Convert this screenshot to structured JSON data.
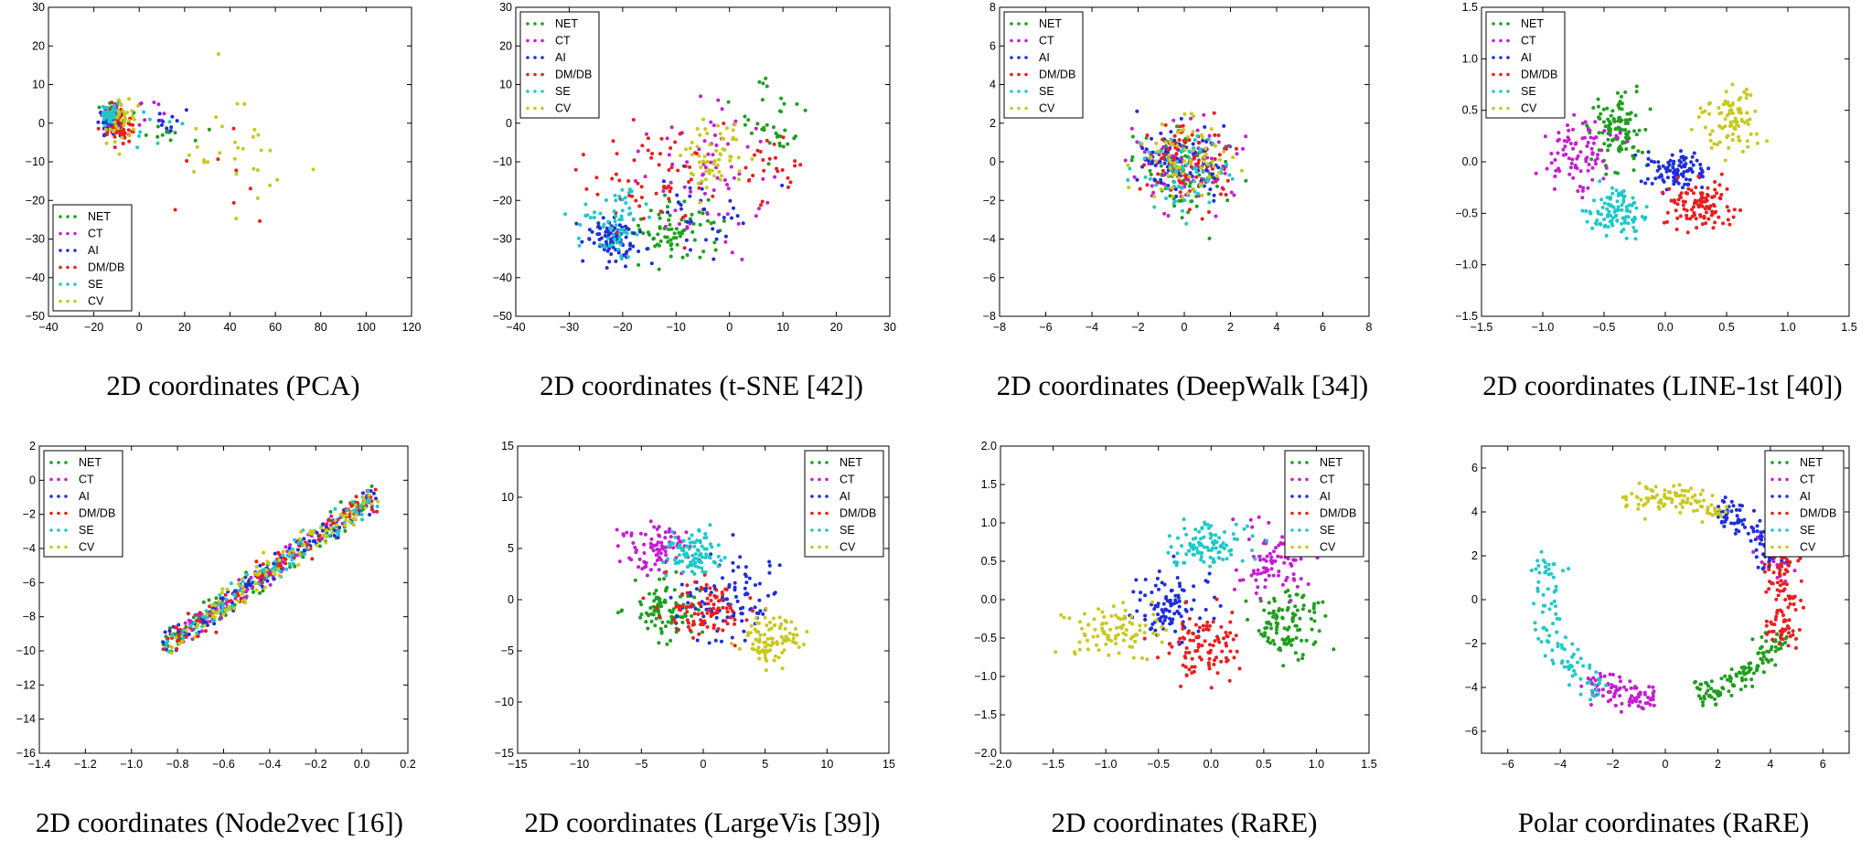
{
  "legend": {
    "entries": [
      "NET",
      "CT",
      "AI",
      "DM/DB",
      "SE",
      "CV"
    ],
    "colors": [
      "#1f9e1f",
      "#c41fd1",
      "#1f2fd8",
      "#e81f1f",
      "#1fc8c8",
      "#c8c81f"
    ]
  },
  "chart_data": [
    {
      "type": "scatter",
      "caption": "2D coordinates (PCA)",
      "xlim": [
        -40,
        120
      ],
      "ylim": [
        -50,
        30
      ],
      "xticks": [
        "−40",
        "−20",
        "0",
        "20",
        "40",
        "60",
        "80",
        "100",
        "120"
      ],
      "yticks": [
        "−50",
        "−40",
        "−30",
        "−20",
        "−10",
        "0",
        "10",
        "20",
        "30"
      ],
      "legend_position": "lower-left",
      "series": [
        {
          "name": "NET",
          "clusters": [
            {
              "cx": -12,
              "cy": 2,
              "sx": 4,
              "sy": 2,
              "n": 70
            },
            {
              "cx": 15,
              "cy": -2,
              "sx": 15,
              "sy": 5,
              "n": 12
            }
          ]
        },
        {
          "name": "CT",
          "clusters": [
            {
              "cx": -13,
              "cy": 2,
              "sx": 4,
              "sy": 2,
              "n": 55
            },
            {
              "cx": 5,
              "cy": 3,
              "sx": 8,
              "sy": 4,
              "n": 8
            }
          ]
        },
        {
          "name": "AI",
          "clusters": [
            {
              "cx": -12,
              "cy": 1,
              "sx": 4,
              "sy": 3,
              "n": 60
            },
            {
              "cx": 12,
              "cy": 0,
              "sx": 12,
              "sy": 5,
              "n": 10
            }
          ]
        },
        {
          "name": "DM/DB",
          "clusters": [
            {
              "cx": -9,
              "cy": -1,
              "sx": 5,
              "sy": 4,
              "n": 55
            },
            {
              "cx": 35,
              "cy": -15,
              "sx": 25,
              "sy": 12,
              "n": 8
            }
          ]
        },
        {
          "name": "SE",
          "clusters": [
            {
              "cx": -13,
              "cy": 2,
              "sx": 3,
              "sy": 2,
              "n": 50
            },
            {
              "cx": 5,
              "cy": -3,
              "sx": 10,
              "sy": 6,
              "n": 8
            }
          ]
        },
        {
          "name": "CV",
          "clusters": [
            {
              "cx": -8,
              "cy": 0,
              "sx": 6,
              "sy": 5,
              "n": 35
            },
            {
              "cx": 45,
              "cy": -8,
              "sx": 28,
              "sy": 14,
              "n": 30
            }
          ]
        }
      ]
    },
    {
      "type": "scatter",
      "caption": "2D coordinates (t-SNE [42])",
      "xlim": [
        -40,
        30
      ],
      "ylim": [
        -50,
        30
      ],
      "xticks": [
        "−40",
        "−30",
        "−20",
        "−10",
        "0",
        "10",
        "20",
        "30"
      ],
      "yticks": [
        "−50",
        "−40",
        "−30",
        "−20",
        "−10",
        "0",
        "10",
        "20",
        "30"
      ],
      "legend_position": "top-left",
      "series": [
        {
          "name": "NET",
          "clusters": [
            {
              "cx": -10,
              "cy": -28,
              "sx": 7,
              "sy": 6,
              "n": 80
            },
            {
              "cx": 8,
              "cy": 0,
              "sx": 5,
              "sy": 10,
              "n": 35
            }
          ]
        },
        {
          "name": "CT",
          "clusters": [
            {
              "cx": -5,
              "cy": -15,
              "sx": 10,
              "sy": 15,
              "n": 70
            }
          ]
        },
        {
          "name": "AI",
          "clusters": [
            {
              "cx": -22,
              "cy": -30,
              "sx": 4,
              "sy": 5,
              "n": 90
            },
            {
              "cx": -5,
              "cy": -25,
              "sx": 10,
              "sy": 10,
              "n": 30
            }
          ]
        },
        {
          "name": "DM/DB",
          "clusters": [
            {
              "cx": -15,
              "cy": -15,
              "sx": 10,
              "sy": 12,
              "n": 60
            },
            {
              "cx": 8,
              "cy": -10,
              "sx": 5,
              "sy": 6,
              "n": 25
            }
          ]
        },
        {
          "name": "SE",
          "clusters": [
            {
              "cx": -22,
              "cy": -28,
              "sx": 5,
              "sy": 6,
              "n": 50
            },
            {
              "cx": -20,
              "cy": -20,
              "sx": 3,
              "sy": 3,
              "n": 15
            }
          ]
        },
        {
          "name": "CV",
          "clusters": [
            {
              "cx": -3,
              "cy": -10,
              "sx": 5,
              "sy": 8,
              "n": 60
            }
          ]
        }
      ]
    },
    {
      "type": "scatter",
      "caption": "2D coordinates (DeepWalk [34])",
      "xlim": [
        -8,
        8
      ],
      "ylim": [
        -8,
        8
      ],
      "xticks": [
        "−8",
        "−6",
        "−4",
        "−2",
        "0",
        "2",
        "4",
        "6",
        "8"
      ],
      "yticks": [
        "−8",
        "−6",
        "−4",
        "−2",
        "0",
        "2",
        "4",
        "6",
        "8"
      ],
      "legend_position": "top-left",
      "series": [
        {
          "name": "NET",
          "clusters": [
            {
              "cx": 0,
              "cy": -0.5,
              "sx": 1.8,
              "sy": 1.8,
              "n": 90
            }
          ]
        },
        {
          "name": "CT",
          "clusters": [
            {
              "cx": 0,
              "cy": 0,
              "sx": 1.8,
              "sy": 1.8,
              "n": 90
            }
          ]
        },
        {
          "name": "AI",
          "clusters": [
            {
              "cx": -0.3,
              "cy": 0,
              "sx": 1.6,
              "sy": 1.6,
              "n": 90
            }
          ]
        },
        {
          "name": "DM/DB",
          "clusters": [
            {
              "cx": 0,
              "cy": 0,
              "sx": 1.7,
              "sy": 1.7,
              "n": 90
            }
          ]
        },
        {
          "name": "SE",
          "clusters": [
            {
              "cx": 0,
              "cy": -0.5,
              "sx": 1.6,
              "sy": 1.6,
              "n": 70
            }
          ]
        },
        {
          "name": "CV",
          "clusters": [
            {
              "cx": 0,
              "cy": 0.3,
              "sx": 1.8,
              "sy": 1.8,
              "n": 70
            }
          ]
        }
      ]
    },
    {
      "type": "scatter",
      "caption": "2D coordinates (LINE-1st [40])",
      "xlim": [
        -1.5,
        1.5
      ],
      "ylim": [
        -1.5,
        1.5
      ],
      "xticks": [
        "−1.5",
        "−1.0",
        "−0.5",
        "0.0",
        "0.5",
        "1.0",
        "1.5"
      ],
      "yticks": [
        "−1.5",
        "−1.0",
        "−0.5",
        "0.0",
        "0.5",
        "1.0",
        "1.5"
      ],
      "legend_position": "top-left",
      "series": [
        {
          "name": "NET",
          "clusters": [
            {
              "cx": -0.4,
              "cy": 0.3,
              "sx": 0.18,
              "sy": 0.3,
              "n": 110
            }
          ]
        },
        {
          "name": "CT",
          "clusters": [
            {
              "cx": -0.7,
              "cy": 0.1,
              "sx": 0.25,
              "sy": 0.3,
              "n": 90
            }
          ]
        },
        {
          "name": "AI",
          "clusters": [
            {
              "cx": 0.1,
              "cy": -0.1,
              "sx": 0.22,
              "sy": 0.15,
              "n": 100
            }
          ]
        },
        {
          "name": "DM/DB",
          "clusters": [
            {
              "cx": 0.3,
              "cy": -0.4,
              "sx": 0.25,
              "sy": 0.2,
              "n": 110
            }
          ]
        },
        {
          "name": "SE",
          "clusters": [
            {
              "cx": -0.4,
              "cy": -0.5,
              "sx": 0.18,
              "sy": 0.2,
              "n": 100
            }
          ]
        },
        {
          "name": "CV",
          "clusters": [
            {
              "cx": 0.55,
              "cy": 0.4,
              "sx": 0.2,
              "sy": 0.25,
              "n": 90
            }
          ]
        }
      ]
    },
    {
      "type": "scatter",
      "caption": "2D coordinates (Node2vec [16])",
      "xlim": [
        -1.4,
        0.2
      ],
      "ylim": [
        -16,
        2
      ],
      "xticks": [
        "−1.4",
        "−1.2",
        "−1.0",
        "−0.8",
        "−0.6",
        "−0.4",
        "−0.2",
        "0.0",
        "0.2"
      ],
      "yticks": [
        "−16",
        "−14",
        "−12",
        "−10",
        "−8",
        "−6",
        "−4",
        "−2",
        "0",
        "2"
      ],
      "legend_position": "top-left",
      "band": {
        "x0": -0.85,
        "x1": 0.05,
        "slope": 9.6,
        "intercept": -1.5,
        "spread": 0.7
      },
      "series": [
        {
          "name": "NET",
          "n": 110
        },
        {
          "name": "CT",
          "n": 100
        },
        {
          "name": "AI",
          "n": 110
        },
        {
          "name": "DM/DB",
          "n": 100
        },
        {
          "name": "SE",
          "n": 100
        },
        {
          "name": "CV",
          "n": 100
        }
      ]
    },
    {
      "type": "scatter",
      "caption": "2D coordinates (LargeVis [39])",
      "xlim": [
        -15,
        15
      ],
      "ylim": [
        -15,
        15
      ],
      "xticks": [
        "−15",
        "−10",
        "−5",
        "0",
        "5",
        "10",
        "15"
      ],
      "yticks": [
        "−15",
        "−10",
        "−5",
        "0",
        "5",
        "10",
        "15"
      ],
      "legend_position": "top-right",
      "series": [
        {
          "name": "NET",
          "clusters": [
            {
              "cx": -3,
              "cy": -1,
              "sx": 2.5,
              "sy": 2.2,
              "n": 100
            }
          ]
        },
        {
          "name": "CT",
          "clusters": [
            {
              "cx": -4,
              "cy": 5,
              "sx": 2.2,
              "sy": 2,
              "n": 90
            }
          ]
        },
        {
          "name": "AI",
          "clusters": [
            {
              "cx": 2,
              "cy": 0,
              "sx": 3,
              "sy": 3,
              "n": 100
            }
          ]
        },
        {
          "name": "DM/DB",
          "clusters": [
            {
              "cx": 0,
              "cy": -1,
              "sx": 3,
              "sy": 2.5,
              "n": 90
            }
          ]
        },
        {
          "name": "SE",
          "clusters": [
            {
              "cx": -1,
              "cy": 4.5,
              "sx": 2,
              "sy": 1.8,
              "n": 90
            }
          ]
        },
        {
          "name": "CV",
          "clusters": [
            {
              "cx": 5.5,
              "cy": -4,
              "sx": 2,
              "sy": 2,
              "n": 90
            }
          ]
        }
      ]
    },
    {
      "type": "scatter",
      "caption": "2D coordinates (RaRE)",
      "xlim": [
        -2.0,
        1.5
      ],
      "ylim": [
        -2.0,
        2.0
      ],
      "xticks": [
        "−2.0",
        "−1.5",
        "−1.0",
        "−0.5",
        "0.0",
        "0.5",
        "1.0",
        "1.5"
      ],
      "yticks": [
        "−2.0",
        "−1.5",
        "−1.0",
        "−0.5",
        "0.0",
        "0.5",
        "1.0",
        "1.5",
        "2.0"
      ],
      "legend_position": "top-right",
      "series": [
        {
          "name": "NET",
          "clusters": [
            {
              "cx": 0.7,
              "cy": -0.3,
              "sx": 0.3,
              "sy": 0.35,
              "n": 110
            }
          ]
        },
        {
          "name": "CT",
          "clusters": [
            {
              "cx": 0.6,
              "cy": 0.5,
              "sx": 0.3,
              "sy": 0.35,
              "n": 90
            }
          ]
        },
        {
          "name": "AI",
          "clusters": [
            {
              "cx": -0.4,
              "cy": -0.1,
              "sx": 0.3,
              "sy": 0.35,
              "n": 100
            }
          ]
        },
        {
          "name": "DM/DB",
          "clusters": [
            {
              "cx": -0.1,
              "cy": -0.6,
              "sx": 0.3,
              "sy": 0.35,
              "n": 100
            }
          ]
        },
        {
          "name": "SE",
          "clusters": [
            {
              "cx": 0.0,
              "cy": 0.7,
              "sx": 0.35,
              "sy": 0.25,
              "n": 100
            }
          ]
        },
        {
          "name": "CV",
          "clusters": [
            {
              "cx": -0.9,
              "cy": -0.4,
              "sx": 0.35,
              "sy": 0.3,
              "n": 90
            }
          ]
        }
      ]
    },
    {
      "type": "scatter",
      "caption": "Polar coordinates (RaRE)",
      "xlim": [
        -7,
        7
      ],
      "ylim": [
        -7,
        7
      ],
      "xticks": [
        "−6",
        "−4",
        "−2",
        "0",
        "2",
        "4",
        "6"
      ],
      "yticks": [
        "−6",
        "−4",
        "−2",
        "0",
        "2",
        "4",
        "6"
      ],
      "legend_position": "top-right",
      "ring": {
        "radius": 4.6,
        "spread": 0.55
      },
      "series": [
        {
          "name": "NET",
          "arcs": [
            {
              "a0": -75,
              "a1": -20,
              "n": 130
            }
          ]
        },
        {
          "name": "CT",
          "arcs": [
            {
              "a0": -130,
              "a1": -95,
              "n": 90
            },
            {
              "a0": 10,
              "a1": 40,
              "n": 20
            }
          ]
        },
        {
          "name": "AI",
          "arcs": [
            {
              "a0": 20,
              "a1": 65,
              "n": 100
            }
          ]
        },
        {
          "name": "DM/DB",
          "arcs": [
            {
              "a0": -25,
              "a1": 25,
              "n": 100
            }
          ]
        },
        {
          "name": "SE",
          "arcs": [
            {
              "a0": 155,
              "a1": 240,
              "n": 100
            }
          ]
        },
        {
          "name": "CV",
          "arcs": [
            {
              "a0": 60,
              "a1": 110,
              "n": 100
            }
          ]
        }
      ]
    }
  ]
}
